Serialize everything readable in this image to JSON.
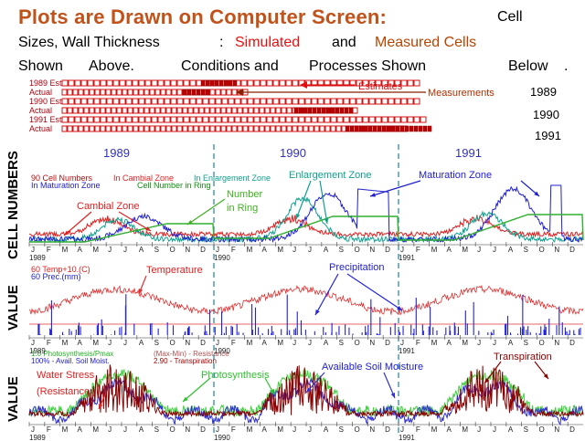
{
  "header": {
    "title": "Plots are Drawn on Computer Screen:",
    "line1_a": "Cell",
    "line2_a": "Sizes, Wall Thickness",
    "line2_colon": ":",
    "simulated": "Simulated",
    "and": "and",
    "measured": "Measured Cells",
    "line3_a": "Shown",
    "line3_b": "Above.",
    "line3_c": "Conditions and",
    "line3_d": "Processes Shown",
    "line3_e": "Below",
    "line3_dot": "."
  },
  "cell_strip": {
    "rows": [
      {
        "label": "1989 Est"
      },
      {
        "label": "Actual"
      },
      {
        "label": "1990 Est"
      },
      {
        "label": "Actual"
      },
      {
        "label": "1991 Est"
      },
      {
        "label": "Actual"
      }
    ],
    "estimates_label": "Estimates",
    "measurements_label": "Measurements",
    "years": [
      "1989",
      "1990",
      "1991"
    ]
  },
  "timeline_years": [
    "1989",
    "1990",
    "1991"
  ],
  "panel1": {
    "ylabel": "CELL NUMBERS",
    "legend": {
      "l1": "90 Cell Numbers",
      "l2": "In Maturation Zone",
      "l3": "In Cambial Zone",
      "l4": "In Enlargement Zone",
      "l5": "Cell Number in Ring"
    },
    "annotations": {
      "cambial": "Cambial Zone",
      "number": "Number",
      "in_ring": "in Ring",
      "enlargement": "Enlargement Zone",
      "maturation": "Maturation Zone"
    }
  },
  "panel2": {
    "ylabel": "VALUE",
    "legend": {
      "l1": "60  Temp+10.(C)",
      "l2": "60  Prec.(mm)"
    },
    "annotations": {
      "temperature": "Temperature",
      "precipitation": "Precipitation"
    }
  },
  "panel3": {
    "ylabel": "VALUE",
    "legend": {
      "l1": "1.0 Photosynthesis/Pmax",
      "l2": "100% - Avail. Soil Moist.",
      "l3": "(Max-Min) - Resistance",
      "l4": "2.90 - Transpiration"
    },
    "annotations": {
      "water_stress": "Water Stress",
      "resistance": "(Resistance   )",
      "photosynthesis": "Photosynthesis",
      "soil_moisture": "Available Soil Moisture",
      "transpiration": "Transpiration"
    }
  },
  "month_letters": [
    "J",
    "F",
    "M",
    "A",
    "M",
    "J",
    "J",
    "A",
    "S",
    "O",
    "N",
    "D"
  ],
  "axis_years": [
    "1989",
    "1990",
    "1991"
  ],
  "colors": {
    "title": "#c0521a",
    "simulated": "#e81010",
    "measured": "#b84400",
    "cambial": "#e02020",
    "enlargement": "#10a090",
    "maturation": "#2020d0",
    "ring": "#30b030",
    "temperature": "#e03030",
    "precipitation": "#2020e0",
    "photosynthesis": "#40d040",
    "soil": "#3030d0",
    "resistance": "#8b0000",
    "divider": "#2080b0"
  }
}
